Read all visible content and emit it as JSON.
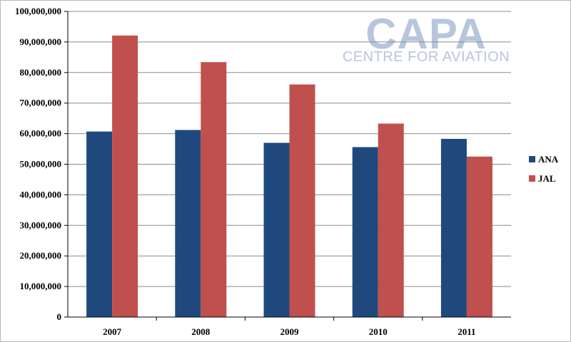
{
  "watermark": {
    "brand": "CAPA",
    "tagline": "CENTRE FOR AVIATION"
  },
  "colors": {
    "ANA": "#1f497d",
    "JAL": "#c0504d",
    "grid": "#8c8c8c",
    "watermark": "#b7c5dd"
  },
  "chart_data": {
    "type": "bar",
    "title": "",
    "xlabel": "",
    "ylabel": "",
    "categories": [
      "2007",
      "2008",
      "2009",
      "2010",
      "2011"
    ],
    "series": [
      {
        "name": "ANA",
        "values": [
          60700000,
          61200000,
          57000000,
          55600000,
          58300000
        ]
      },
      {
        "name": "JAL",
        "values": [
          92100000,
          83400000,
          76100000,
          63300000,
          52500000
        ]
      }
    ],
    "ylim": [
      0,
      100000000
    ],
    "yticks": [
      0,
      10000000,
      20000000,
      30000000,
      40000000,
      50000000,
      60000000,
      70000000,
      80000000,
      90000000,
      100000000
    ],
    "ytick_labels": [
      "0",
      "10,000,000",
      "20,000,000",
      "30,000,000",
      "40,000,000",
      "50,000,000",
      "60,000,000",
      "70,000,000",
      "80,000,000",
      "90,000,000",
      "100,000,000"
    ],
    "grid": true,
    "legend": "right"
  }
}
